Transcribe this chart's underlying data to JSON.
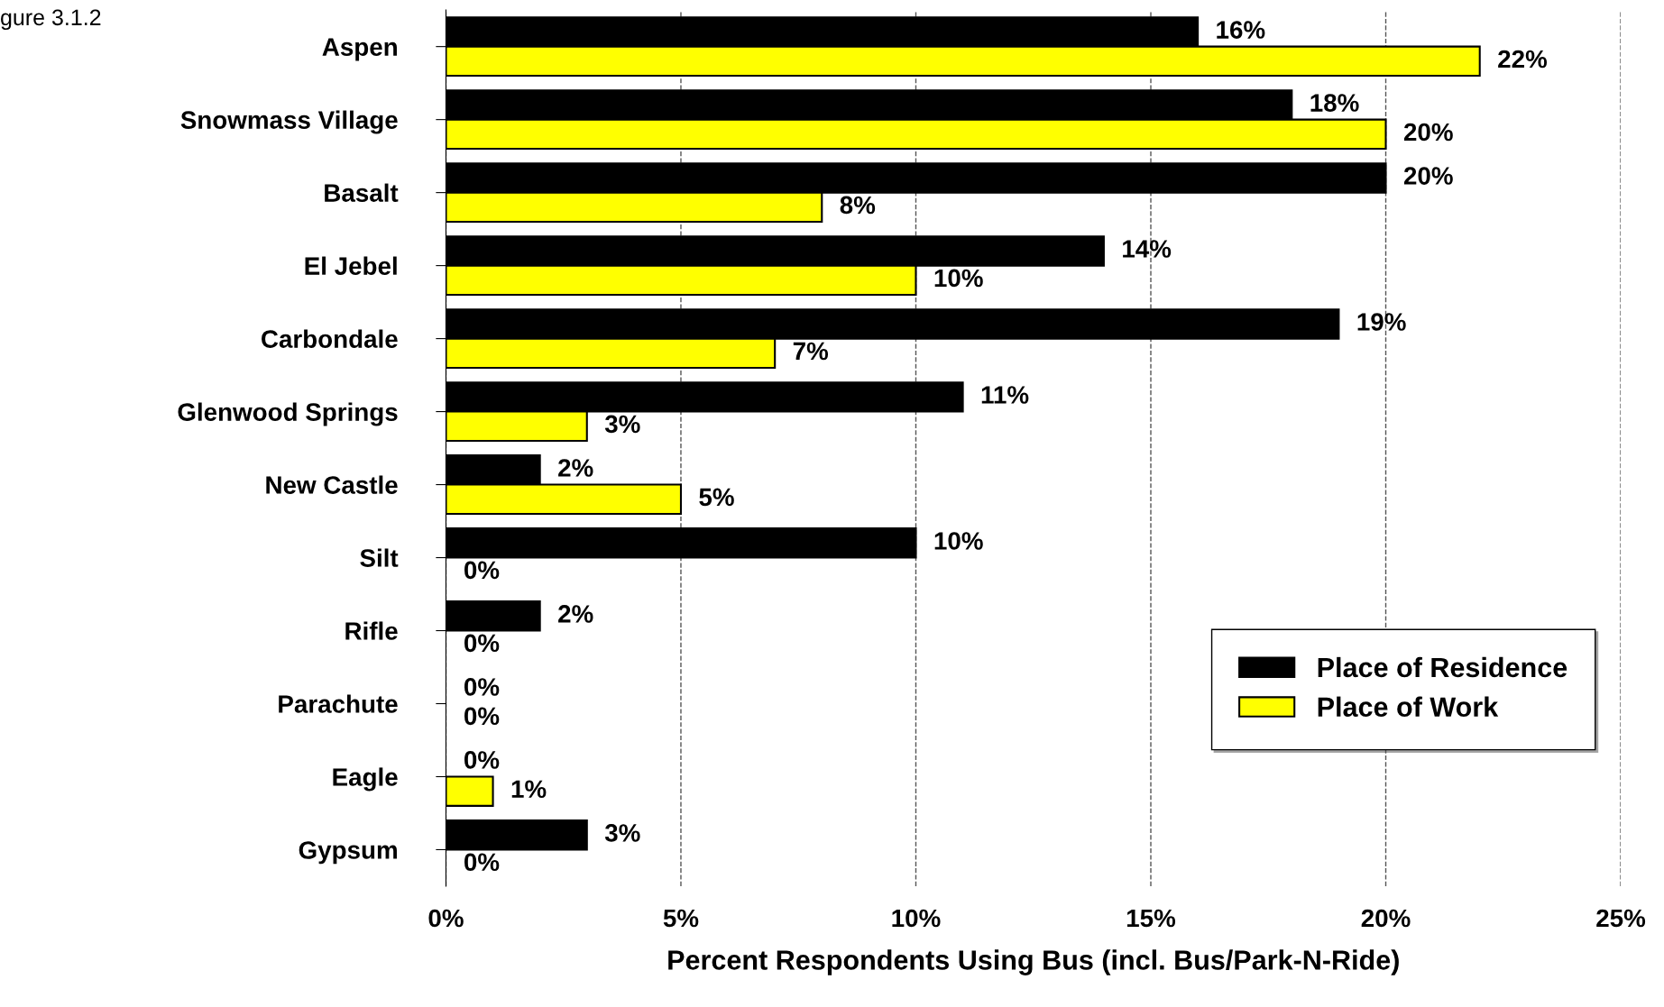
{
  "chart_data": {
    "type": "bar",
    "orientation": "horizontal",
    "categories": [
      "Aspen",
      "Snowmass Village",
      "Basalt",
      "El Jebel",
      "Carbondale",
      "Glenwood Springs",
      "New Castle",
      "Silt",
      "Rifle",
      "Parachute",
      "Eagle",
      "Gypsum"
    ],
    "series": [
      {
        "name": "Place of Residence",
        "color": "#000000",
        "values": [
          16,
          18,
          20,
          14,
          19,
          11,
          2,
          10,
          2,
          0,
          0,
          3
        ],
        "value_labels": [
          "16%",
          "18%",
          "20%",
          "14%",
          "19%",
          "11%",
          "2%",
          "10%",
          "2%",
          "0%",
          "0%",
          "3%"
        ]
      },
      {
        "name": "Place of Work",
        "color": "#ffff00",
        "values": [
          22,
          20,
          8,
          10,
          7,
          3,
          5,
          0,
          0,
          0,
          1,
          0
        ],
        "value_labels": [
          "22%",
          "20%",
          "8%",
          "10%",
          "7%",
          "3%",
          "5%",
          "0%",
          "0%",
          "0%",
          "1%",
          "0%"
        ]
      }
    ],
    "xlabel": "Percent Respondents Using Bus (incl. Bus/Park-N-Ride)",
    "xlim": [
      0,
      25
    ],
    "xticks": [
      {
        "value": 0,
        "label": "0%"
      },
      {
        "value": 5,
        "label": "5%"
      },
      {
        "value": 10,
        "label": "10%"
      },
      {
        "value": 15,
        "label": "15%"
      },
      {
        "value": 20,
        "label": "20%"
      },
      {
        "value": 25,
        "label": "25%"
      }
    ],
    "grid": "x",
    "legend": "lower right",
    "annotations": [
      "gure 3.1.2"
    ]
  }
}
